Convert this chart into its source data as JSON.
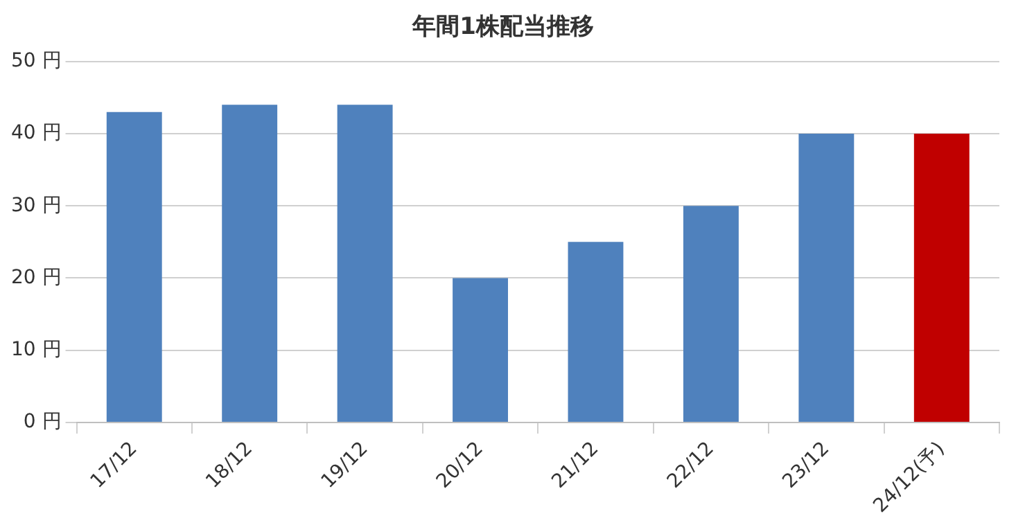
{
  "chart_data": {
    "type": "bar",
    "title": "年間1株配当推移",
    "categories": [
      "17/12",
      "18/12",
      "19/12",
      "20/12",
      "21/12",
      "22/12",
      "23/12",
      "24/12(予)"
    ],
    "values": [
      43,
      44,
      44,
      20,
      25,
      30,
      40,
      40
    ],
    "colors": [
      "#4f81bd",
      "#4f81bd",
      "#4f81bd",
      "#4f81bd",
      "#4f81bd",
      "#4f81bd",
      "#4f81bd",
      "#c00000"
    ],
    "ylim": [
      0,
      50
    ],
    "yticks": [
      {
        "value": 0,
        "label": "0 円"
      },
      {
        "value": 10,
        "label": "10 円"
      },
      {
        "value": 20,
        "label": "20 円"
      },
      {
        "value": 30,
        "label": "30 円"
      },
      {
        "value": 40,
        "label": "40 円"
      },
      {
        "value": 50,
        "label": "50 円"
      }
    ],
    "grid": "y",
    "legend": false
  }
}
